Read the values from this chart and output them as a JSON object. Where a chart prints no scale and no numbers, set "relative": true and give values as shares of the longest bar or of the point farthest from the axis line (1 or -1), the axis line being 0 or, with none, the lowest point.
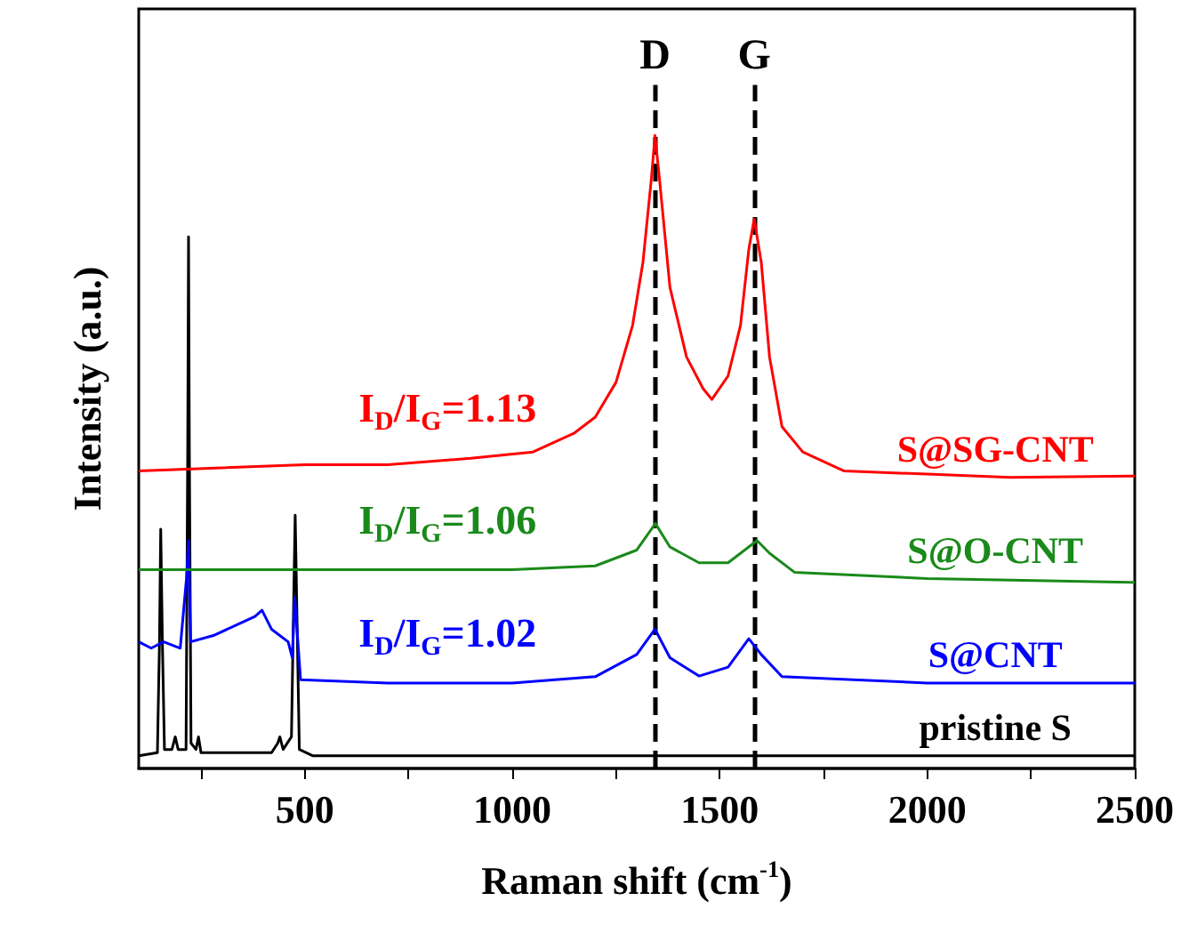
{
  "chart_data": {
    "type": "line",
    "relative": true,
    "xlabel": "Raman shift (cm$^{-1}$)",
    "ylabel": "Intensity (a.u.)",
    "xlim": [
      100,
      2500
    ],
    "xticks": [
      {
        "value": 250,
        "label": null
      },
      500,
      {
        "value": 750,
        "label": null
      },
      1000,
      {
        "value": 1250,
        "label": null
      },
      1500,
      {
        "value": 1750,
        "label": null
      },
      2000,
      {
        "value": 2250,
        "label": null
      },
      2500
    ],
    "annotations": [
      "I$_{D}$/I$_{G}$=1.13",
      "I$_{D}$/I$_{G}$=1.06",
      "I$_{D}$/I$_{G}$=1.02"
    ],
    "ref_lines": [
      {
        "axis": "x",
        "value": 1344,
        "label": "D",
        "color": "#000000",
        "line_style": "dashed"
      },
      {
        "axis": "x",
        "value": 1583,
        "label": "G",
        "color": "#000000",
        "line_style": "dashed"
      }
    ],
    "series": [
      {
        "name": "S@SG-CNT",
        "color": "#ff0000",
        "x": [
          100,
          300,
          500,
          700,
          900,
          1050,
          1150,
          1200,
          1250,
          1290,
          1315,
          1335,
          1344,
          1355,
          1380,
          1420,
          1460,
          1481,
          1520,
          1550,
          1570,
          1583,
          1600,
          1620,
          1650,
          1700,
          1800,
          2000,
          2200,
          2500
        ],
        "values": [
          0.47,
          0.475,
          0.48,
          0.48,
          0.49,
          0.5,
          0.53,
          0.555,
          0.61,
          0.7,
          0.8,
          0.93,
          1.0,
          0.93,
          0.76,
          0.65,
          0.6,
          0.583,
          0.62,
          0.7,
          0.82,
          0.868,
          0.8,
          0.65,
          0.54,
          0.5,
          0.47,
          0.465,
          0.46,
          0.462
        ]
      },
      {
        "name": "S@O-CNT",
        "color": "#1a8a1a",
        "x": [
          100,
          500,
          1000,
          1200,
          1300,
          1345,
          1380,
          1450,
          1520,
          1560,
          1590,
          1620,
          1680,
          2000,
          2500
        ],
        "values": [
          0.314,
          0.314,
          0.314,
          0.32,
          0.345,
          0.387,
          0.35,
          0.325,
          0.325,
          0.345,
          0.36,
          0.34,
          0.31,
          0.3,
          0.294
        ]
      },
      {
        "name": "S@CNT",
        "color": "#0000ff",
        "x": [
          100,
          130,
          160,
          200,
          215,
          220,
          225,
          280,
          330,
          380,
          397,
          420,
          460,
          470,
          476,
          490,
          700,
          1000,
          1200,
          1300,
          1344,
          1380,
          1450,
          1520,
          1570,
          1600,
          1650,
          2000,
          2500
        ],
        "values": [
          0.2,
          0.19,
          0.2,
          0.19,
          0.3,
          0.36,
          0.2,
          0.21,
          0.225,
          0.24,
          0.25,
          0.22,
          0.2,
          0.175,
          0.27,
          0.14,
          0.135,
          0.135,
          0.145,
          0.18,
          0.22,
          0.175,
          0.146,
          0.16,
          0.205,
          0.18,
          0.145,
          0.135,
          0.135
        ]
      },
      {
        "name": "pristine S",
        "color": "#000000",
        "x": [
          100,
          145,
          150,
          153,
          157,
          162,
          180,
          188,
          195,
          214,
          218,
          220,
          222,
          226,
          238,
          244,
          250,
          420,
          435,
          440,
          448,
          468,
          473,
          477,
          481,
          487,
          520,
          1000,
          2500
        ],
        "values": [
          0.02,
          0.025,
          0.2,
          0.378,
          0.2,
          0.03,
          0.03,
          0.05,
          0.03,
          0.03,
          0.5,
          0.84,
          0.5,
          0.04,
          0.03,
          0.05,
          0.025,
          0.025,
          0.04,
          0.05,
          0.03,
          0.05,
          0.25,
          0.4,
          0.25,
          0.03,
          0.02,
          0.02,
          0.02
        ]
      }
    ]
  }
}
